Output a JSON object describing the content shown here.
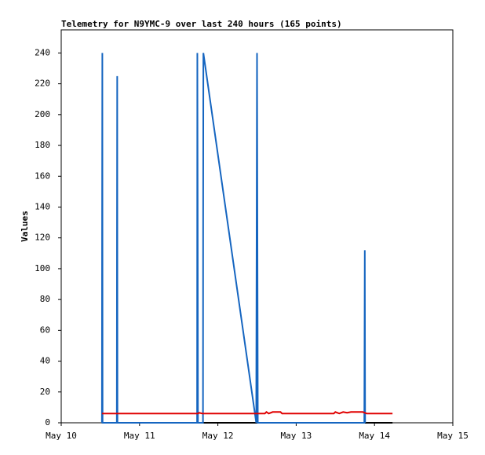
{
  "chart_data": {
    "type": "line",
    "title": "Telemetry for N9YMC-9 over last 240 hours (165 points)",
    "y_label": "Values",
    "xlim": [
      0,
      5
    ],
    "ylim": [
      0,
      255
    ],
    "xticks": [
      {
        "value": 0,
        "label": "May 10"
      },
      {
        "value": 1,
        "label": "May 11"
      },
      {
        "value": 2,
        "label": "May 12"
      },
      {
        "value": 3,
        "label": "May 13"
      },
      {
        "value": 4,
        "label": "May 14"
      },
      {
        "value": 5,
        "label": "May 15"
      }
    ],
    "yticks": [
      0,
      20,
      40,
      60,
      80,
      100,
      120,
      140,
      160,
      180,
      200,
      220,
      240
    ],
    "series": [
      {
        "color": "#000000",
        "x": [
          0.52,
          4.23
        ],
        "values": [
          0,
          0
        ]
      },
      {
        "color": "#1565c0",
        "x": [
          0.52,
          0.522,
          0.525,
          0.528,
          0.71,
          0.712,
          0.715,
          0.718,
          1.735,
          1.738,
          1.742,
          1.746,
          1.81,
          1.812,
          1.815,
          2.49,
          2.495,
          2.5,
          2.505,
          2.51,
          3.87,
          3.873,
          3.876,
          3.88
        ],
        "values": [
          0,
          120,
          240,
          0,
          0,
          112,
          225,
          0,
          0,
          240,
          145,
          0,
          0,
          128,
          240,
          0,
          120,
          240,
          120,
          0,
          0,
          56,
          112,
          0
        ]
      },
      {
        "color": "#e00000",
        "x": [
          0.52,
          1.75,
          1.76,
          1.8,
          2.6,
          2.62,
          2.65,
          2.7,
          2.8,
          2.82,
          3.48,
          3.5,
          3.55,
          3.6,
          3.65,
          3.7,
          3.85,
          3.9,
          4.23
        ],
        "values": [
          6,
          6,
          6.5,
          6,
          6,
          7,
          6,
          7,
          7,
          6,
          6,
          7,
          6,
          7,
          6.5,
          7,
          7,
          6,
          6
        ]
      }
    ]
  }
}
